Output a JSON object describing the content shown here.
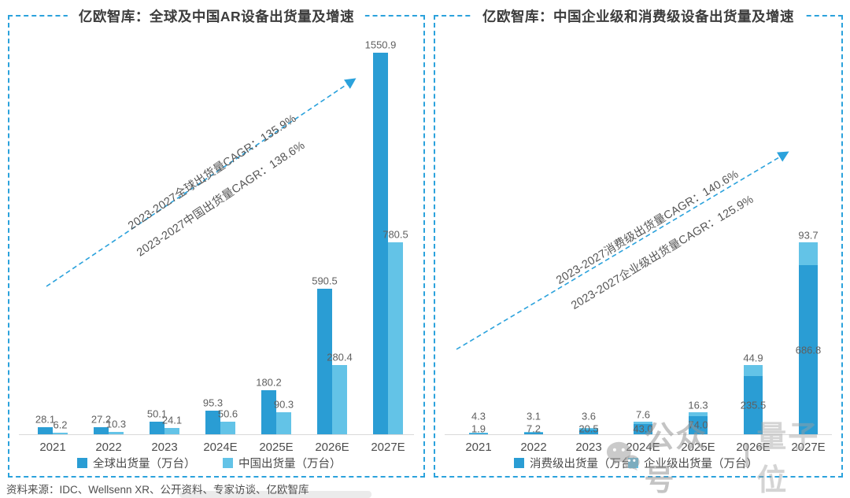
{
  "source_note": "资料来源：IDC、Wellsenn XR、公开资料、专家访谈、亿欧智库",
  "watermark": {
    "icon": "wechat-icon",
    "label": "公众号",
    "brand": "量子位"
  },
  "colors": {
    "accent": "#2BA2DC",
    "bar_dark": "#2A9DD4",
    "bar_light": "#63C3E7"
  },
  "chart_data": [
    {
      "type": "bar",
      "grouped": true,
      "title": "亿欧智库：全球及中国AR设备出货量及增速",
      "categories": [
        "2021",
        "2022",
        "2023",
        "2024E",
        "2025E",
        "2026E",
        "2027E"
      ],
      "series": [
        {
          "name": "全球出货量（万台）",
          "color": "#2A9DD4",
          "values": [
            "28.1",
            "27.2",
            "50.1",
            "95.3",
            "180.2",
            "590.5",
            "1550.9"
          ]
        },
        {
          "name": "中国出货量（万台）",
          "color": "#63C3E7",
          "values": [
            "6.2",
            "10.3",
            "24.1",
            "50.6",
            "90.3",
            "280.4",
            "780.5"
          ]
        }
      ],
      "annotations": [
        "2023-2027全球出货量CAGR：135.9%",
        "2023-2027中国出货量CAGR：138.6%"
      ],
      "ylim": [
        0,
        1600
      ],
      "unit": "万台",
      "legend_position": "bottom",
      "grid": false
    },
    {
      "type": "bar",
      "stacked": true,
      "title": "亿欧智库：中国企业级和消费级设备出货量及增速",
      "categories": [
        "2021",
        "2022",
        "2023",
        "2024E",
        "2025E",
        "2026E",
        "2027E"
      ],
      "series": [
        {
          "name": "消费级出货量（万台）",
          "color": "#2A9DD4",
          "stack_order": "bottom",
          "values": [
            "1.9",
            "7.2",
            "20.5",
            "43.0",
            "74.0",
            "235.5",
            "686.8"
          ]
        },
        {
          "name": "企业级出货量（万台）",
          "color": "#63C3E7",
          "stack_order": "top",
          "values": [
            "4.3",
            "3.1",
            "3.6",
            "7.6",
            "16.3",
            "44.9",
            "93.7"
          ]
        }
      ],
      "annotations": [
        "2023-2027消费级出货量CAGR：140.6%",
        "2023-2027企业级出货量CAGR：125.9%"
      ],
      "ylim": [
        0,
        800
      ],
      "unit": "万台",
      "legend_position": "bottom",
      "grid": false
    }
  ]
}
